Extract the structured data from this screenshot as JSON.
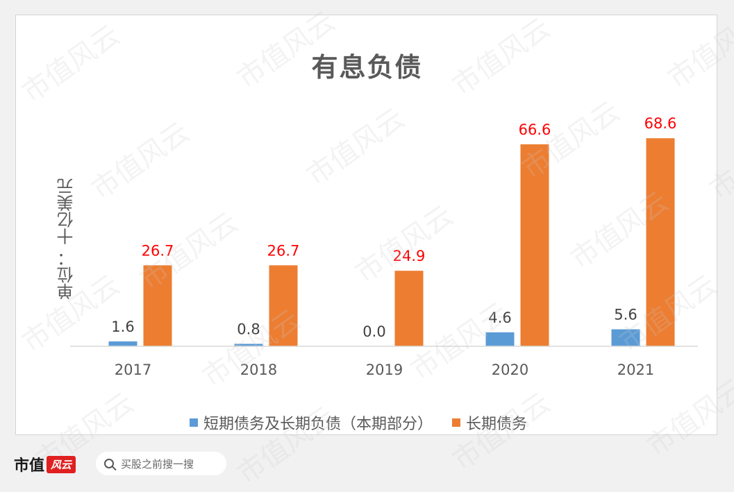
{
  "chart_data": {
    "type": "bar",
    "title": "有息负债",
    "ylabel": "单位：  十亿美元",
    "categories": [
      "2017",
      "2018",
      "2019",
      "2020",
      "2021"
    ],
    "series": [
      {
        "name": "短期债务及长期负债（本期部分）",
        "color": "#5b9bd5",
        "values": [
          1.6,
          0.8,
          0.0,
          4.6,
          5.6
        ],
        "labels": [
          "1.6",
          "0.8",
          "0.0",
          "4.6",
          "5.6"
        ]
      },
      {
        "name": "长期债务",
        "color": "#ed7d31",
        "values": [
          26.7,
          26.7,
          24.9,
          66.6,
          68.6
        ],
        "labels": [
          "26.7",
          "26.7",
          "24.9",
          "66.6",
          "68.6"
        ]
      }
    ],
    "ylim": [
      0,
      75
    ],
    "grid": false,
    "legend": "bottom",
    "label_colors": {
      "series0": "#404040",
      "series1": "#ff0000"
    }
  },
  "watermark_text": "市值风云",
  "footer": {
    "brand": "市值",
    "brand_seal": "风云",
    "search_placeholder": "买股之前搜一搜"
  }
}
